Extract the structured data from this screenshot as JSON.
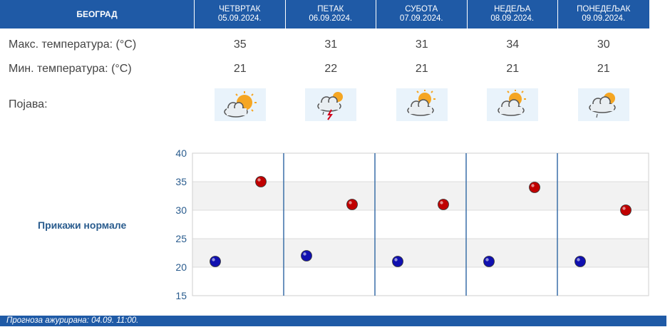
{
  "header": {
    "city": "БЕОГРАД",
    "days": [
      {
        "name": "ЧЕТВРТАК",
        "date": "05.09.2024."
      },
      {
        "name": "ПЕТАК",
        "date": "06.09.2024."
      },
      {
        "name": "СУБОТА",
        "date": "07.09.2024."
      },
      {
        "name": "НЕДЕЉА",
        "date": "08.09.2024."
      },
      {
        "name": "ПОНЕДЕЉАК",
        "date": "09.09.2024."
      }
    ]
  },
  "rows": {
    "max_label": "Макс. температура: (°C)",
    "min_label": "Мин. температура: (°C)",
    "phenomenon_label": "Појава:",
    "max_values": [
      "35",
      "31",
      "31",
      "34",
      "30"
    ],
    "min_values": [
      "21",
      "22",
      "21",
      "21",
      "21"
    ],
    "icons": [
      "sun-cloud-icon",
      "thunderstorm-icon",
      "partly-cloudy-icon",
      "partly-cloudy-icon",
      "cloud-rain-icon"
    ]
  },
  "normals_link": "Прикажи нормале",
  "footer": "Прогноза ажурирана:  04.09.  11:00.",
  "colors": {
    "header_bg": "#1f5aa6",
    "max_point": "#c00000",
    "min_point": "#1010b0",
    "label_text": "#2a5c8e"
  },
  "chart_data": {
    "type": "scatter",
    "categories": [
      "ЧЕТВРТАК",
      "ПЕТАК",
      "СУБОТА",
      "НЕДЕЉА",
      "ПОНЕДЕЉАК"
    ],
    "series": [
      {
        "values": [
          21,
          22,
          21,
          21,
          21
        ]
      },
      {
        "values": [
          35,
          31,
          31,
          34,
          30
        ]
      }
    ],
    "ylim": [
      15,
      40
    ],
    "yticks": [
      "40",
      "35",
      "30",
      "25",
      "20",
      "15"
    ],
    "grid": true
  }
}
